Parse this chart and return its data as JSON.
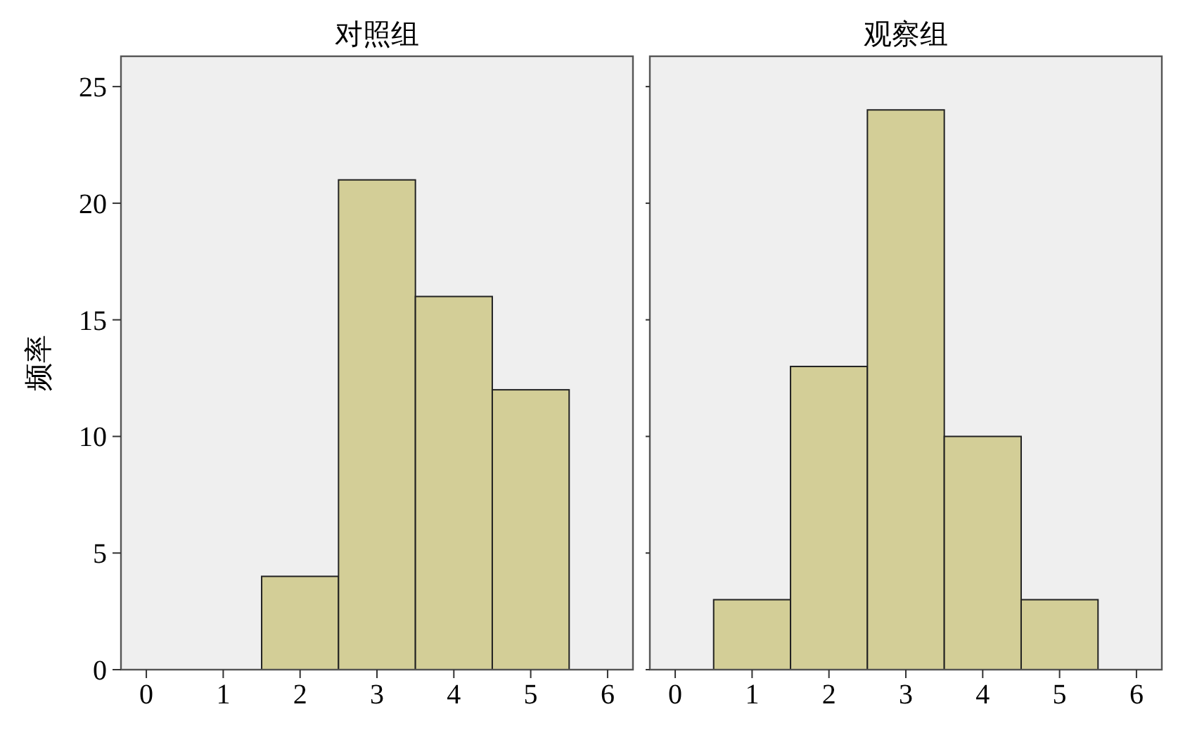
{
  "chart_data": [
    {
      "type": "histogram",
      "title": "对照组",
      "ylabel": "频率",
      "bins": [
        1.5,
        2.5,
        3.5,
        4.5,
        5.5
      ],
      "values": [
        4,
        21,
        16,
        12
      ],
      "color": "#d3ce97",
      "xlim": [
        -0.33,
        6.33
      ],
      "xticks": [
        0,
        1,
        2,
        3,
        4,
        5,
        6
      ],
      "ylim": [
        0,
        26.3
      ],
      "yticks": [
        0,
        5,
        10,
        15,
        20,
        25
      ]
    },
    {
      "type": "histogram",
      "title": "观察组",
      "bins": [
        0.5,
        1.5,
        2.5,
        3.5,
        4.5,
        5.5
      ],
      "values": [
        3,
        13,
        24,
        10,
        3
      ],
      "color": "#d3ce97",
      "xlim": [
        -0.33,
        6.33
      ],
      "xticks": [
        0,
        1,
        2,
        3,
        4,
        5,
        6
      ],
      "ylim": [
        0,
        26.3
      ],
      "yticks": [
        0,
        5,
        10,
        15,
        20,
        25
      ],
      "tick_labels": "x"
    }
  ]
}
